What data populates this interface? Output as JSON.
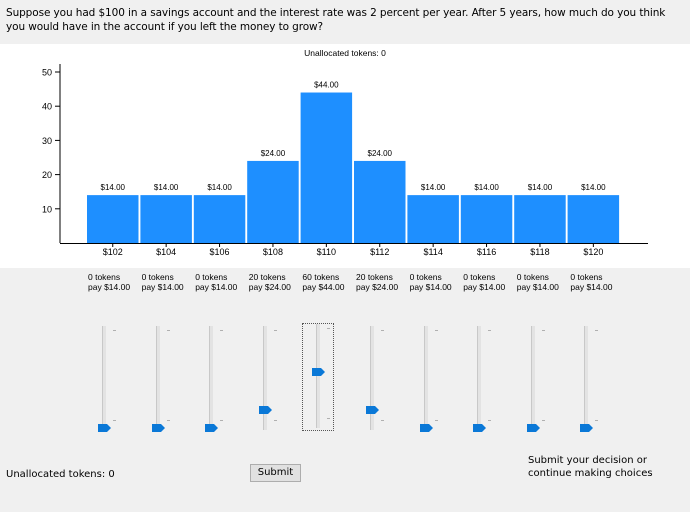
{
  "question": "Suppose you had $100 in a savings account and the interest rate was 2 percent per year. After 5 years, how much do you think you would have in the account if you left the money to grow?",
  "chart_title": "Unallocated tokens: 0",
  "chart_data": {
    "type": "bar",
    "categories": [
      "$102",
      "$104",
      "$106",
      "$108",
      "$110",
      "$112",
      "$114",
      "$116",
      "$118",
      "$120"
    ],
    "values": [
      14,
      14,
      14,
      24,
      44,
      24,
      14,
      14,
      14,
      14
    ],
    "data_labels": [
      "$14.00",
      "$14.00",
      "$14.00",
      "$24.00",
      "$44.00",
      "$24.00",
      "$14.00",
      "$14.00",
      "$14.00",
      "$14.00"
    ],
    "yticks": [
      "10",
      "20",
      "30",
      "40",
      "50"
    ],
    "ylim": [
      0,
      50
    ],
    "bar_color": "#1e8fff",
    "grid": false
  },
  "allocations": [
    {
      "tokens": "0 tokens",
      "pay": "pay $14.00",
      "level": 0
    },
    {
      "tokens": "0 tokens",
      "pay": "pay $14.00",
      "level": 0
    },
    {
      "tokens": "0 tokens",
      "pay": "pay $14.00",
      "level": 0
    },
    {
      "tokens": "20 tokens",
      "pay": "pay $24.00",
      "level": 0.2
    },
    {
      "tokens": "60 tokens",
      "pay": "pay $44.00",
      "level": 0.6
    },
    {
      "tokens": "20 tokens",
      "pay": "pay $24.00",
      "level": 0.2
    },
    {
      "tokens": "0 tokens",
      "pay": "pay $14.00",
      "level": 0
    },
    {
      "tokens": "0 tokens",
      "pay": "pay $14.00",
      "level": 0
    },
    {
      "tokens": "0 tokens",
      "pay": "pay $14.00",
      "level": 0
    },
    {
      "tokens": "0 tokens",
      "pay": "pay $14.00",
      "level": 0
    }
  ],
  "focused_slider": 4,
  "thumb_color": "#0a78d7",
  "bottom": {
    "unallocated": "Unallocated tokens: 0",
    "submit_label": "Submit",
    "hint": "Submit your decision or continue making choices"
  }
}
